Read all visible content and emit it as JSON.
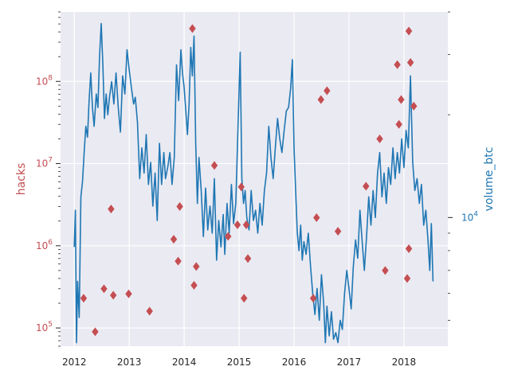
{
  "chart_data": {
    "type": "scatter+line",
    "left_axis": {
      "label": "hacks",
      "scale": "log",
      "ylim": [
        60000,
        700000000
      ],
      "color": "#c44e52",
      "ticks": [
        {
          "label": "10",
          "exp": "5",
          "value": 100000
        },
        {
          "label": "10",
          "exp": "6",
          "value": 1000000
        },
        {
          "label": "10",
          "exp": "7",
          "value": 10000000
        },
        {
          "label": "10",
          "exp": "8",
          "value": 100000000
        }
      ]
    },
    "right_axis": {
      "label": "volume_btc",
      "scale": "log",
      "ylim": [
        4200,
        40000
      ],
      "color": "#1f77b4",
      "ticks": [
        {
          "label": "10",
          "exp": "4",
          "value": 10000
        }
      ]
    },
    "x_axis": {
      "xlim": [
        2011.75,
        2018.8
      ],
      "ticks": [
        {
          "label": "2012",
          "value": 2012
        },
        {
          "label": "2013",
          "value": 2013
        },
        {
          "label": "2014",
          "value": 2014
        },
        {
          "label": "2015",
          "value": 2015
        },
        {
          "label": "2016",
          "value": 2016
        },
        {
          "label": "2017",
          "value": 2017
        },
        {
          "label": "2018",
          "value": 2018
        }
      ]
    },
    "grid": true,
    "background": "#eaeaf2",
    "hacks_points": [
      {
        "x": 2012.17,
        "y": 230000
      },
      {
        "x": 2012.38,
        "y": 90000
      },
      {
        "x": 2012.54,
        "y": 300000
      },
      {
        "x": 2012.67,
        "y": 2800000
      },
      {
        "x": 2012.71,
        "y": 250000
      },
      {
        "x": 2012.99,
        "y": 260000
      },
      {
        "x": 2013.37,
        "y": 160000
      },
      {
        "x": 2013.81,
        "y": 1200000
      },
      {
        "x": 2013.89,
        "y": 650000
      },
      {
        "x": 2013.92,
        "y": 3000000
      },
      {
        "x": 2014.15,
        "y": 440000000
      },
      {
        "x": 2014.18,
        "y": 330000
      },
      {
        "x": 2014.22,
        "y": 560000
      },
      {
        "x": 2014.55,
        "y": 9500000
      },
      {
        "x": 2014.8,
        "y": 1300000
      },
      {
        "x": 2014.97,
        "y": 1800000
      },
      {
        "x": 2015.04,
        "y": 5200000
      },
      {
        "x": 2015.09,
        "y": 230000
      },
      {
        "x": 2015.13,
        "y": 1800000
      },
      {
        "x": 2015.16,
        "y": 700000
      },
      {
        "x": 2016.35,
        "y": 230000
      },
      {
        "x": 2016.41,
        "y": 2200000
      },
      {
        "x": 2016.49,
        "y": 60000000
      },
      {
        "x": 2016.6,
        "y": 77000000
      },
      {
        "x": 2016.8,
        "y": 1500000
      },
      {
        "x": 2017.31,
        "y": 5300000
      },
      {
        "x": 2017.56,
        "y": 20000000
      },
      {
        "x": 2017.66,
        "y": 500000
      },
      {
        "x": 2017.88,
        "y": 160000000
      },
      {
        "x": 2017.91,
        "y": 30000000
      },
      {
        "x": 2017.95,
        "y": 60000000
      },
      {
        "x": 2018.06,
        "y": 400000
      },
      {
        "x": 2018.09,
        "y": 410000000
      },
      {
        "x": 2018.09,
        "y": 920000
      },
      {
        "x": 2018.12,
        "y": 170000000
      },
      {
        "x": 2018.18,
        "y": 50000000
      }
    ],
    "volume_line": [
      [
        2012.0,
        8200
      ],
      [
        2012.02,
        10500
      ],
      [
        2012.04,
        4300
      ],
      [
        2012.06,
        6500
      ],
      [
        2012.09,
        5100
      ],
      [
        2012.12,
        11500
      ],
      [
        2012.15,
        12800
      ],
      [
        2012.18,
        15500
      ],
      [
        2012.21,
        18500
      ],
      [
        2012.24,
        17200
      ],
      [
        2012.27,
        22000
      ],
      [
        2012.3,
        26500
      ],
      [
        2012.33,
        21000
      ],
      [
        2012.36,
        18500
      ],
      [
        2012.4,
        23000
      ],
      [
        2012.43,
        21000
      ],
      [
        2012.46,
        29500
      ],
      [
        2012.49,
        37000
      ],
      [
        2012.52,
        28000
      ],
      [
        2012.55,
        19500
      ],
      [
        2012.58,
        23000
      ],
      [
        2012.61,
        20000
      ],
      [
        2012.64,
        22500
      ],
      [
        2012.68,
        25000
      ],
      [
        2012.72,
        21500
      ],
      [
        2012.76,
        26500
      ],
      [
        2012.8,
        21000
      ],
      [
        2012.84,
        17800
      ],
      [
        2012.88,
        26000
      ],
      [
        2012.92,
        23000
      ],
      [
        2012.96,
        31000
      ],
      [
        2013.0,
        27000
      ],
      [
        2013.04,
        24000
      ],
      [
        2013.08,
        21500
      ],
      [
        2013.11,
        22500
      ],
      [
        2013.15,
        19000
      ],
      [
        2013.19,
        13000
      ],
      [
        2013.23,
        16000
      ],
      [
        2013.27,
        13500
      ],
      [
        2013.31,
        17500
      ],
      [
        2013.35,
        12500
      ],
      [
        2013.39,
        14500
      ],
      [
        2013.43,
        10800
      ],
      [
        2013.47,
        13500
      ],
      [
        2013.51,
        9800
      ],
      [
        2013.55,
        16500
      ],
      [
        2013.59,
        12500
      ],
      [
        2013.63,
        15500
      ],
      [
        2013.66,
        13000
      ],
      [
        2013.7,
        14000
      ],
      [
        2013.74,
        15500
      ],
      [
        2013.78,
        12500
      ],
      [
        2013.82,
        15000
      ],
      [
        2013.86,
        28000
      ],
      [
        2013.9,
        22000
      ],
      [
        2013.94,
        31000
      ],
      [
        2013.97,
        26500
      ],
      [
        2014.0,
        24000
      ],
      [
        2014.03,
        20500
      ],
      [
        2014.06,
        17500
      ],
      [
        2014.09,
        21500
      ],
      [
        2014.12,
        31500
      ],
      [
        2014.15,
        26000
      ],
      [
        2014.18,
        34000
      ],
      [
        2014.21,
        16500
      ],
      [
        2014.24,
        11000
      ],
      [
        2014.27,
        15000
      ],
      [
        2014.31,
        12000
      ],
      [
        2014.35,
        8800
      ],
      [
        2014.39,
        12200
      ],
      [
        2014.43,
        9200
      ],
      [
        2014.47,
        10800
      ],
      [
        2014.51,
        9000
      ],
      [
        2014.55,
        13000
      ],
      [
        2014.59,
        7500
      ],
      [
        2014.63,
        9800
      ],
      [
        2014.67,
        8200
      ],
      [
        2014.71,
        10200
      ],
      [
        2014.74,
        7800
      ],
      [
        2014.78,
        11000
      ],
      [
        2014.82,
        9000
      ],
      [
        2014.86,
        12500
      ],
      [
        2014.9,
        9600
      ],
      [
        2014.94,
        11000
      ],
      [
        2014.98,
        18500
      ],
      [
        2015.02,
        30500
      ],
      [
        2015.05,
        13000
      ],
      [
        2015.08,
        11000
      ],
      [
        2015.11,
        12000
      ],
      [
        2015.14,
        10000
      ],
      [
        2015.18,
        9200
      ],
      [
        2015.22,
        12000
      ],
      [
        2015.26,
        9800
      ],
      [
        2015.3,
        10500
      ],
      [
        2015.34,
        9000
      ],
      [
        2015.38,
        11000
      ],
      [
        2015.42,
        9500
      ],
      [
        2015.46,
        12000
      ],
      [
        2015.5,
        13500
      ],
      [
        2015.54,
        18500
      ],
      [
        2015.58,
        15000
      ],
      [
        2015.62,
        13000
      ],
      [
        2015.66,
        16000
      ],
      [
        2015.7,
        19500
      ],
      [
        2015.74,
        17000
      ],
      [
        2015.78,
        15500
      ],
      [
        2015.82,
        18000
      ],
      [
        2015.86,
        20500
      ],
      [
        2015.9,
        21000
      ],
      [
        2015.94,
        24000
      ],
      [
        2015.97,
        29000
      ],
      [
        2016.0,
        16000
      ],
      [
        2016.03,
        12000
      ],
      [
        2016.06,
        9000
      ],
      [
        2016.09,
        8000
      ],
      [
        2016.12,
        9500
      ],
      [
        2016.15,
        7500
      ],
      [
        2016.18,
        8500
      ],
      [
        2016.22,
        7800
      ],
      [
        2016.26,
        9000
      ],
      [
        2016.3,
        7200
      ],
      [
        2016.34,
        6000
      ],
      [
        2016.38,
        5200
      ],
      [
        2016.42,
        6200
      ],
      [
        2016.46,
        5000
      ],
      [
        2016.5,
        6800
      ],
      [
        2016.54,
        5600
      ],
      [
        2016.57,
        4300
      ],
      [
        2016.6,
        5500
      ],
      [
        2016.64,
        4500
      ],
      [
        2016.68,
        5300
      ],
      [
        2016.72,
        4400
      ],
      [
        2016.76,
        4600
      ],
      [
        2016.8,
        4300
      ],
      [
        2016.84,
        5000
      ],
      [
        2016.88,
        4700
      ],
      [
        2016.92,
        6000
      ],
      [
        2016.96,
        7000
      ],
      [
        2017.0,
        6200
      ],
      [
        2017.04,
        5400
      ],
      [
        2017.08,
        7200
      ],
      [
        2017.12,
        8600
      ],
      [
        2017.16,
        7600
      ],
      [
        2017.2,
        10500
      ],
      [
        2017.24,
        8500
      ],
      [
        2017.28,
        7000
      ],
      [
        2017.32,
        8800
      ],
      [
        2017.36,
        11500
      ],
      [
        2017.4,
        9500
      ],
      [
        2017.44,
        12000
      ],
      [
        2017.48,
        10000
      ],
      [
        2017.52,
        13500
      ],
      [
        2017.56,
        15500
      ],
      [
        2017.6,
        11500
      ],
      [
        2017.64,
        13500
      ],
      [
        2017.68,
        11000
      ],
      [
        2017.72,
        14000
      ],
      [
        2017.76,
        12500
      ],
      [
        2017.8,
        16000
      ],
      [
        2017.84,
        13000
      ],
      [
        2017.88,
        15500
      ],
      [
        2017.92,
        13500
      ],
      [
        2017.96,
        17000
      ],
      [
        2018.0,
        14000
      ],
      [
        2018.04,
        18000
      ],
      [
        2018.08,
        16000
      ],
      [
        2018.12,
        26000
      ],
      [
        2018.16,
        14500
      ],
      [
        2018.2,
        12000
      ],
      [
        2018.24,
        13000
      ],
      [
        2018.28,
        11000
      ],
      [
        2018.32,
        12500
      ],
      [
        2018.36,
        9500
      ],
      [
        2018.4,
        10500
      ],
      [
        2018.44,
        8500
      ],
      [
        2018.47,
        7000
      ],
      [
        2018.5,
        9600
      ],
      [
        2018.53,
        6500
      ]
    ]
  }
}
